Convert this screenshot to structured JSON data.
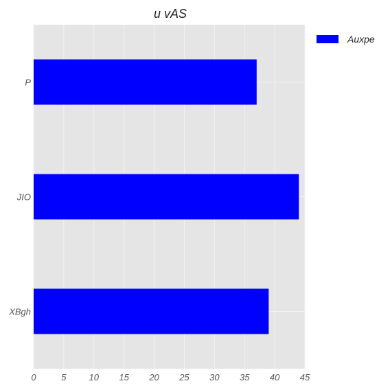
{
  "chart_data": {
    "type": "bar",
    "orientation": "horizontal",
    "title": "u vAS",
    "xlabel": "",
    "ylabel": "",
    "categories": [
      "P",
      "JIO",
      "XBgh"
    ],
    "series": [
      {
        "name": "Auxpe",
        "values": [
          37,
          44,
          39
        ],
        "color": "#0000ff"
      }
    ],
    "xlim": [
      0,
      45
    ],
    "xticks": [
      0,
      5,
      10,
      15,
      20,
      25,
      30,
      35,
      40,
      45
    ],
    "grid": true,
    "legend": "top-right outside"
  },
  "style": {
    "plot_background": "#e5e5e5",
    "grid_color": "#f3f3f3"
  }
}
